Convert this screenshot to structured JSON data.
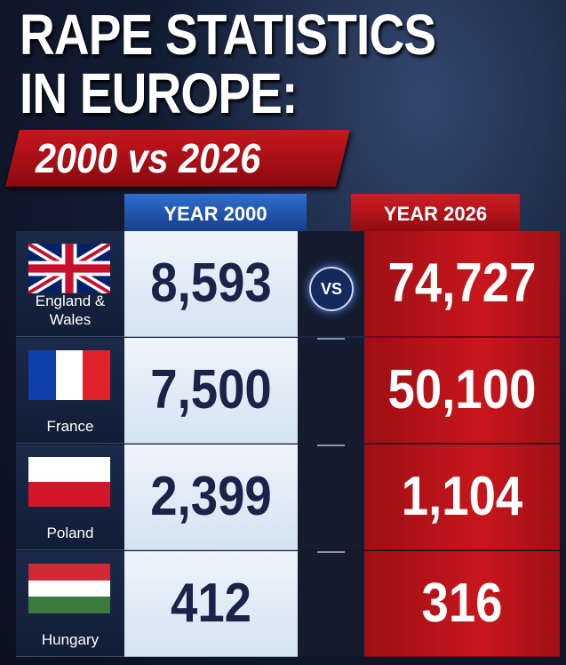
{
  "header": {
    "title_lines": [
      "RAPE STATISTICS",
      "IN EUROPE:"
    ],
    "subtitle": "2000 vs 2026"
  },
  "table": {
    "columns": [
      "YEAR 2000",
      "YEAR 2026"
    ],
    "vs": "VS",
    "rows": [
      {
        "country": "England & Wales",
        "year_2000": "8,593",
        "year_2026": "74,727"
      },
      {
        "country": "France",
        "year_2000": "7,500",
        "year_2026": "50,100"
      },
      {
        "country": "Poland",
        "year_2000": "2,399",
        "year_2026": "1,104"
      },
      {
        "country": "Hungary",
        "year_2000": "412",
        "year_2026": "316"
      }
    ]
  }
}
